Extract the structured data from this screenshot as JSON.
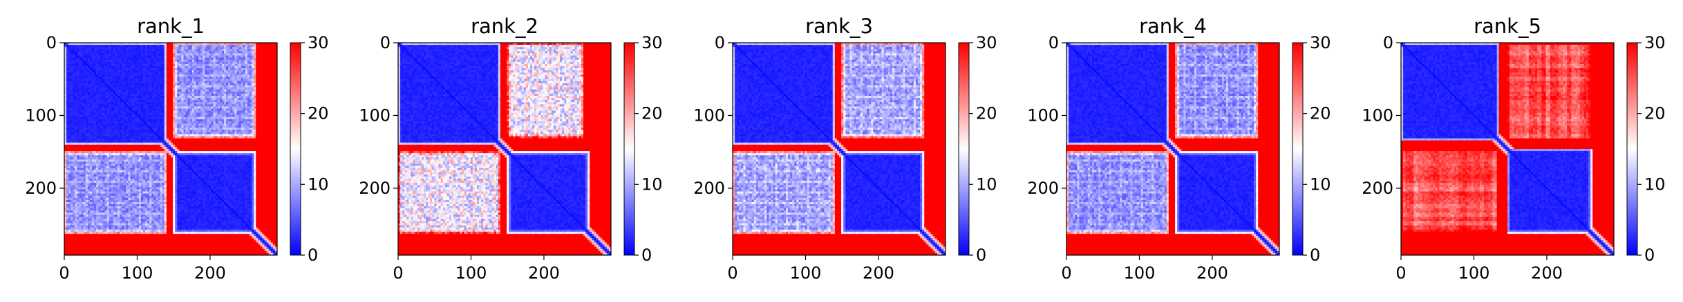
{
  "chart_data": [
    {
      "type": "heatmap",
      "title": "rank_1",
      "xlim": [
        0,
        292
      ],
      "ylim": [
        292,
        0
      ],
      "x_ticks": [
        0,
        100,
        200
      ],
      "y_ticks": [
        0,
        100,
        200
      ],
      "blocks": [
        {
          "x": [
            0,
            140
          ],
          "y": [
            0,
            140
          ],
          "level": 2,
          "texture": 0.15
        },
        {
          "x": [
            150,
            262
          ],
          "y": [
            150,
            262
          ],
          "level": 2,
          "texture": 0.15
        },
        {
          "x": [
            150,
            262
          ],
          "y": [
            0,
            130
          ],
          "level": 8,
          "texture": 0.55
        },
        {
          "x": [
            0,
            140
          ],
          "y": [
            150,
            262
          ],
          "level": 8,
          "texture": 0.55
        }
      ],
      "colorbar": {
        "range": [
          0,
          30
        ],
        "ticks": [
          0,
          10,
          20,
          30
        ],
        "colormap": "bwr"
      }
    },
    {
      "type": "heatmap",
      "title": "rank_2",
      "xlim": [
        0,
        292
      ],
      "ylim": [
        292,
        0
      ],
      "x_ticks": [
        0,
        100,
        200
      ],
      "y_ticks": [
        0,
        100,
        200
      ],
      "blocks": [
        {
          "x": [
            0,
            140
          ],
          "y": [
            0,
            140
          ],
          "level": 2,
          "texture": 0.15
        },
        {
          "x": [
            150,
            262
          ],
          "y": [
            150,
            262
          ],
          "level": 2,
          "texture": 0.15
        },
        {
          "x": [
            150,
            255
          ],
          "y": [
            0,
            130
          ],
          "level": 13,
          "texture": 0.9
        },
        {
          "x": [
            0,
            140
          ],
          "y": [
            150,
            262
          ],
          "level": 13,
          "texture": 0.9
        }
      ],
      "colorbar": {
        "range": [
          0,
          30
        ],
        "ticks": [
          0,
          10,
          20,
          30
        ],
        "colormap": "bwr"
      }
    },
    {
      "type": "heatmap",
      "title": "rank_3",
      "xlim": [
        0,
        292
      ],
      "ylim": [
        292,
        0
      ],
      "x_ticks": [
        0,
        100,
        200
      ],
      "y_ticks": [
        0,
        100,
        200
      ],
      "blocks": [
        {
          "x": [
            0,
            140
          ],
          "y": [
            0,
            140
          ],
          "level": 2,
          "texture": 0.15
        },
        {
          "x": [
            150,
            262
          ],
          "y": [
            150,
            262
          ],
          "level": 2,
          "texture": 0.15
        },
        {
          "x": [
            150,
            262
          ],
          "y": [
            0,
            130
          ],
          "level": 9,
          "texture": 0.6
        },
        {
          "x": [
            0,
            140
          ],
          "y": [
            150,
            262
          ],
          "level": 9,
          "texture": 0.6
        }
      ],
      "colorbar": {
        "range": [
          0,
          30
        ],
        "ticks": [
          0,
          10,
          20,
          30
        ],
        "colormap": "bwr"
      }
    },
    {
      "type": "heatmap",
      "title": "rank_4",
      "xlim": [
        0,
        292
      ],
      "ylim": [
        292,
        0
      ],
      "x_ticks": [
        0,
        100,
        200
      ],
      "y_ticks": [
        0,
        100,
        200
      ],
      "blocks": [
        {
          "x": [
            0,
            140
          ],
          "y": [
            0,
            140
          ],
          "level": 2,
          "texture": 0.15
        },
        {
          "x": [
            150,
            262
          ],
          "y": [
            150,
            262
          ],
          "level": 2,
          "texture": 0.15
        },
        {
          "x": [
            150,
            262
          ],
          "y": [
            0,
            130
          ],
          "level": 8,
          "texture": 0.55
        },
        {
          "x": [
            0,
            140
          ],
          "y": [
            150,
            262
          ],
          "level": 8,
          "texture": 0.55
        }
      ],
      "colorbar": {
        "range": [
          0,
          30
        ],
        "ticks": [
          0,
          10,
          20,
          30
        ],
        "colormap": "bwr"
      }
    },
    {
      "type": "heatmap",
      "title": "rank_5",
      "xlim": [
        0,
        292
      ],
      "ylim": [
        292,
        0
      ],
      "x_ticks": [
        0,
        100,
        200
      ],
      "y_ticks": [
        0,
        100,
        200
      ],
      "blocks": [
        {
          "x": [
            0,
            135
          ],
          "y": [
            0,
            135
          ],
          "level": 2,
          "texture": 0.15
        },
        {
          "x": [
            145,
            262
          ],
          "y": [
            145,
            262
          ],
          "level": 2,
          "texture": 0.15
        },
        {
          "x": [
            145,
            262
          ],
          "y": [
            0,
            135
          ],
          "level": 25,
          "texture": 1.0,
          "streaks": true
        },
        {
          "x": [
            0,
            135
          ],
          "y": [
            145,
            262
          ],
          "level": 25,
          "texture": 1.0,
          "streaks": true
        }
      ],
      "colorbar": {
        "range": [
          0,
          30
        ],
        "ticks": [
          0,
          10,
          20,
          30
        ],
        "colormap": "bwr"
      }
    }
  ]
}
